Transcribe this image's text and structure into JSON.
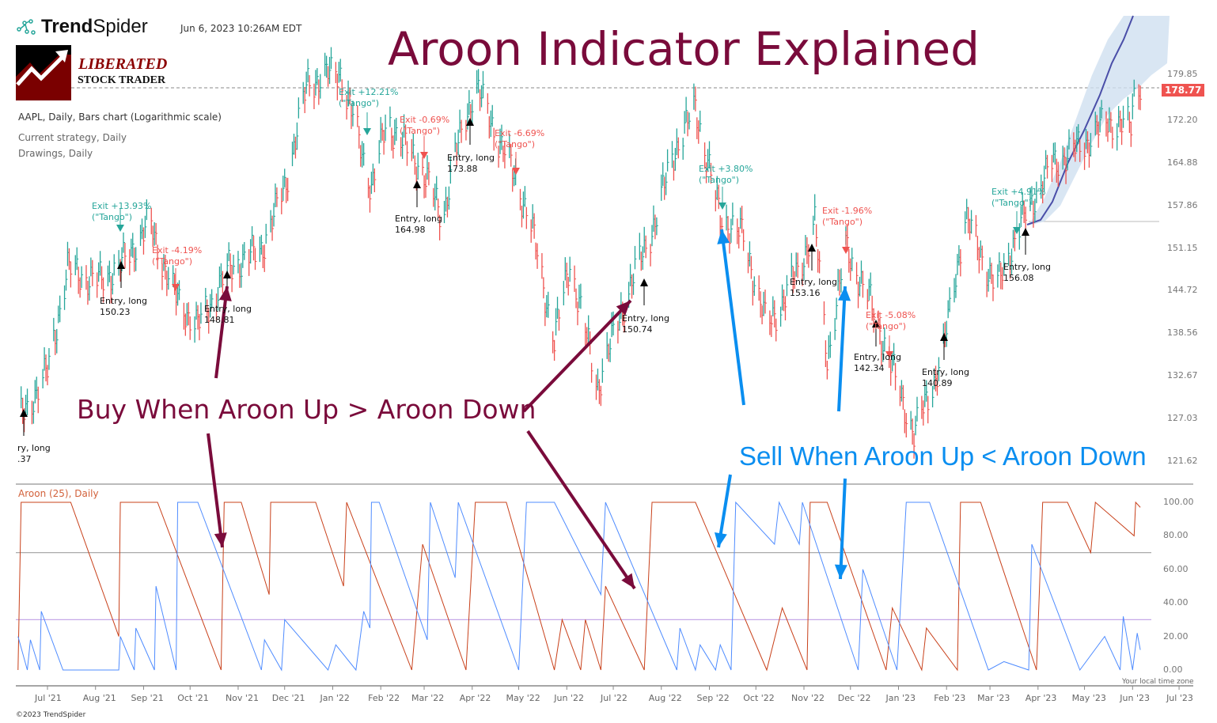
{
  "header": {
    "brand": {
      "bold": "Trend",
      "light": "Spider"
    },
    "timestamp": "Jun 6, 2023 10:26AM EDT",
    "logo": {
      "line1": "LIBERATED",
      "line2": "STOCK TRADER"
    },
    "symbol_info": "AAPL, Daily, Bars chart (Logarithmic scale)",
    "strategy_info": "Current strategy, Daily",
    "drawings_info": "Drawings, Daily"
  },
  "annotations": {
    "title": "Aroon Indicator Explained",
    "buy_rule": "Buy When Aroon Up > Aroon Down",
    "sell_rule": "Sell When Aroon Up < Aroon Down"
  },
  "colors": {
    "up_bar": "#26a69a",
    "down_bar": "#ef5350",
    "aroon_up": "#c8401a",
    "aroon_down": "#4f8cff",
    "title": "#7a0b3b",
    "sell_arrow": "#0a8ef0"
  },
  "chart_data": [
    {
      "type": "bar",
      "title": "AAPL, Daily, Bars chart (Logarithmic scale)",
      "y_scale": "log",
      "ylim": [
        121.62,
        179.85
      ],
      "y_ticks": [
        "179.85",
        "172.20",
        "164.88",
        "157.86",
        "151.15",
        "144.72",
        "138.56",
        "132.67",
        "127.03",
        "121.62"
      ],
      "x_ticks": [
        "Jul '21",
        "Aug '21",
        "Sep '21",
        "Oct '21",
        "Nov '21",
        "Dec '21",
        "Jan '22",
        "Feb '22",
        "Mar '22",
        "Apr '22",
        "May '22",
        "Jun '22",
        "Jul '22",
        "Aug '22",
        "Sep '22",
        "Oct '22",
        "Nov '22",
        "Dec '22",
        "Jan '23",
        "Feb '23",
        "Mar '23",
        "Apr '23",
        "May '23",
        "Jun '23",
        "Jul '23"
      ],
      "last_price": "178.77",
      "approx_close": [
        [
          "2021-06-12",
          126.4
        ],
        [
          "2021-07-01",
          133.2
        ],
        [
          "2021-07-14",
          148
        ],
        [
          "2021-08-01",
          146
        ],
        [
          "2021-08-16",
          148
        ],
        [
          "2021-09-05",
          155
        ],
        [
          "2021-09-21",
          144
        ],
        [
          "2021-10-06",
          139.5
        ],
        [
          "2021-10-26",
          148
        ],
        [
          "2021-11-16",
          151
        ],
        [
          "2021-12-01",
          160.8
        ],
        [
          "2021-12-16",
          179
        ],
        [
          "2022-01-06",
          181
        ],
        [
          "2022-01-26",
          160.8
        ],
        [
          "2022-02-05",
          172
        ],
        [
          "2022-02-26",
          164.6
        ],
        [
          "2022-03-13",
          156
        ],
        [
          "2022-03-21",
          166
        ],
        [
          "2022-04-03",
          178.6
        ],
        [
          "2022-04-23",
          166
        ],
        [
          "2022-05-08",
          156
        ],
        [
          "2022-05-24",
          137.6
        ],
        [
          "2022-06-03",
          149
        ],
        [
          "2022-06-21",
          131.2
        ],
        [
          "2022-07-08",
          143
        ],
        [
          "2022-07-29",
          156
        ],
        [
          "2022-08-08",
          166
        ],
        [
          "2022-08-23",
          174.5
        ],
        [
          "2022-09-08",
          156
        ],
        [
          "2022-09-23",
          153
        ],
        [
          "2022-10-08",
          139.5
        ],
        [
          "2022-10-18",
          143
        ],
        [
          "2022-10-29",
          148
        ],
        [
          "2022-11-08",
          155
        ],
        [
          "2022-11-16",
          135
        ],
        [
          "2022-11-28",
          151
        ],
        [
          "2022-12-14",
          143
        ],
        [
          "2022-12-29",
          133
        ],
        [
          "2023-01-11",
          125
        ],
        [
          "2023-01-29",
          135
        ],
        [
          "2023-02-13",
          156
        ],
        [
          "2023-03-05",
          145
        ],
        [
          "2023-03-21",
          155
        ],
        [
          "2023-04-10",
          164.6
        ],
        [
          "2023-04-30",
          168
        ],
        [
          "2023-05-16",
          172
        ],
        [
          "2023-05-31",
          171
        ],
        [
          "2023-06-03",
          180
        ],
        [
          "2023-06-06",
          178.77
        ]
      ],
      "signals": [
        {
          "kind": "entry",
          "label": "ry, long",
          "value": ".37"
        },
        {
          "kind": "exit_win",
          "label": "Exit +13.93%",
          "value": "(\"Tango\")"
        },
        {
          "kind": "entry",
          "label": "Entry, long",
          "value": "150.23"
        },
        {
          "kind": "exit_loss",
          "label": "Exit -4.19%",
          "value": "(\"Tango\")"
        },
        {
          "kind": "entry",
          "label": "Entry, long",
          "value": "148.81"
        },
        {
          "kind": "exit_win",
          "label": "Exit +12.21%",
          "value": "(\"Tango\")"
        },
        {
          "kind": "exit_loss",
          "label": "Exit -0.69%",
          "value": "(\"Tango\")"
        },
        {
          "kind": "entry",
          "label": "Entry, long",
          "value": "164.98"
        },
        {
          "kind": "entry",
          "label": "Entry, long",
          "value": "173.88"
        },
        {
          "kind": "exit_loss",
          "label": "Exit -6.69%",
          "value": "(\"Tango\")"
        },
        {
          "kind": "entry",
          "label": "Entry, long",
          "value": "150.74"
        },
        {
          "kind": "exit_win",
          "label": "Exit +3.80%",
          "value": "(\"Tango\")"
        },
        {
          "kind": "entry",
          "label": "Entry, long",
          "value": "153.16"
        },
        {
          "kind": "exit_loss",
          "label": "Exit -1.96%",
          "value": "(\"Tango\")"
        },
        {
          "kind": "exit_loss",
          "label": "Exit -5.08%",
          "value": "(\"Tango\")"
        },
        {
          "kind": "entry",
          "label": "Entry, long",
          "value": "142.34"
        },
        {
          "kind": "entry",
          "label": "Entry, long",
          "value": "140.89"
        },
        {
          "kind": "exit_win",
          "label": "Exit +4.91%",
          "value": "(\"Tango\")"
        },
        {
          "kind": "entry",
          "label": "Entry, long",
          "value": "156.08"
        }
      ]
    },
    {
      "type": "line",
      "title": "Aroon (25), Daily",
      "ylim": [
        0,
        100
      ],
      "y_ticks": [
        "100.00",
        "80.00",
        "60.00",
        "40.00",
        "20.00",
        "0.00"
      ],
      "levels": [
        70,
        30
      ],
      "timezone_note": "Your local time zone",
      "series": [
        {
          "color": "#c8401a",
          "points": [
            [
              "2021-06-12",
              0
            ],
            [
              "2021-06-14",
              100
            ],
            [
              "2021-07-16",
              100
            ],
            [
              "2021-08-16",
              20
            ],
            [
              "2021-08-17",
              100
            ],
            [
              "2021-09-10",
              100
            ],
            [
              "2021-10-21",
              0
            ],
            [
              "2021-10-23",
              100
            ],
            [
              "2021-11-03",
              100
            ],
            [
              "2021-11-21",
              45
            ],
            [
              "2021-11-22",
              100
            ],
            [
              "2021-12-21",
              100
            ],
            [
              "2022-01-08",
              50
            ],
            [
              "2022-01-10",
              100
            ],
            [
              "2022-02-21",
              0
            ],
            [
              "2022-02-28",
              75
            ],
            [
              "2022-03-28",
              0
            ],
            [
              "2022-04-03",
              100
            ],
            [
              "2022-04-23",
              100
            ],
            [
              "2022-05-24",
              0
            ],
            [
              "2022-05-29",
              30
            ],
            [
              "2022-06-10",
              0
            ],
            [
              "2022-06-13",
              30
            ],
            [
              "2022-06-23",
              0
            ],
            [
              "2022-06-26",
              50
            ],
            [
              "2022-07-21",
              0
            ],
            [
              "2022-07-26",
              100
            ],
            [
              "2022-08-23",
              100
            ],
            [
              "2022-10-08",
              0
            ],
            [
              "2022-10-18",
              37
            ],
            [
              "2022-11-03",
              0
            ],
            [
              "2022-11-05",
              100
            ],
            [
              "2022-11-16",
              100
            ],
            [
              "2022-12-24",
              0
            ],
            [
              "2022-12-28",
              37
            ],
            [
              "2023-01-16",
              0
            ],
            [
              "2023-01-19",
              25
            ],
            [
              "2023-02-08",
              0
            ],
            [
              "2023-02-10",
              100
            ],
            [
              "2023-02-23",
              100
            ],
            [
              "2023-03-31",
              0
            ],
            [
              "2023-04-04",
              100
            ],
            [
              "2023-04-20",
              100
            ],
            [
              "2023-05-05",
              70
            ],
            [
              "2023-05-08",
              100
            ],
            [
              "2023-06-02",
              80
            ],
            [
              "2023-06-03",
              100
            ],
            [
              "2023-06-06",
              97
            ]
          ]
        },
        {
          "color": "#4f8cff",
          "points": [
            [
              "2021-06-12",
              20
            ],
            [
              "2021-06-18",
              0
            ],
            [
              "2021-06-20",
              18
            ],
            [
              "2021-06-26",
              0
            ],
            [
              "2021-06-27",
              35
            ],
            [
              "2021-07-11",
              0
            ],
            [
              "2021-08-16",
              0
            ],
            [
              "2021-08-17",
              20
            ],
            [
              "2021-08-26",
              0
            ],
            [
              "2021-08-27",
              25
            ],
            [
              "2021-09-08",
              0
            ],
            [
              "2021-09-09",
              50
            ],
            [
              "2021-09-22",
              0
            ],
            [
              "2021-09-23",
              100
            ],
            [
              "2021-10-06",
              100
            ],
            [
              "2021-11-16",
              0
            ],
            [
              "2021-11-18",
              18
            ],
            [
              "2021-11-29",
              0
            ],
            [
              "2021-12-01",
              30
            ],
            [
              "2021-12-29",
              0
            ],
            [
              "2022-01-03",
              15
            ],
            [
              "2022-01-16",
              0
            ],
            [
              "2022-01-21",
              35
            ],
            [
              "2022-01-25",
              25
            ],
            [
              "2022-01-26",
              100
            ],
            [
              "2022-01-31",
              100
            ],
            [
              "2022-03-03",
              18
            ],
            [
              "2022-03-05",
              100
            ],
            [
              "2022-03-21",
              55
            ],
            [
              "2022-03-23",
              100
            ],
            [
              "2022-05-01",
              0
            ],
            [
              "2022-05-06",
              100
            ],
            [
              "2022-05-24",
              100
            ],
            [
              "2022-06-23",
              45
            ],
            [
              "2022-06-26",
              100
            ],
            [
              "2022-08-11",
              0
            ],
            [
              "2022-08-13",
              25
            ],
            [
              "2022-08-23",
              0
            ],
            [
              "2022-08-26",
              15
            ],
            [
              "2022-09-05",
              0
            ],
            [
              "2022-09-08",
              15
            ],
            [
              "2022-09-15",
              0
            ],
            [
              "2022-09-18",
              100
            ],
            [
              "2022-10-13",
              75
            ],
            [
              "2022-10-16",
              100
            ],
            [
              "2022-10-29",
              75
            ],
            [
              "2022-10-31",
              100
            ],
            [
              "2022-12-06",
              0
            ],
            [
              "2022-12-09",
              60
            ],
            [
              "2022-12-31",
              0
            ],
            [
              "2023-01-06",
              100
            ],
            [
              "2023-01-21",
              100
            ],
            [
              "2023-02-28",
              0
            ],
            [
              "2023-03-10",
              5
            ],
            [
              "2023-03-26",
              0
            ],
            [
              "2023-03-28",
              75
            ],
            [
              "2023-04-28",
              0
            ],
            [
              "2023-05-14",
              20
            ],
            [
              "2023-05-24",
              0
            ],
            [
              "2023-05-26",
              32
            ],
            [
              "2023-06-01",
              0
            ],
            [
              "2023-06-04",
              22
            ],
            [
              "2023-06-06",
              12
            ]
          ]
        }
      ]
    }
  ],
  "footer": {
    "copyright": "©2023 TrendSpider"
  }
}
